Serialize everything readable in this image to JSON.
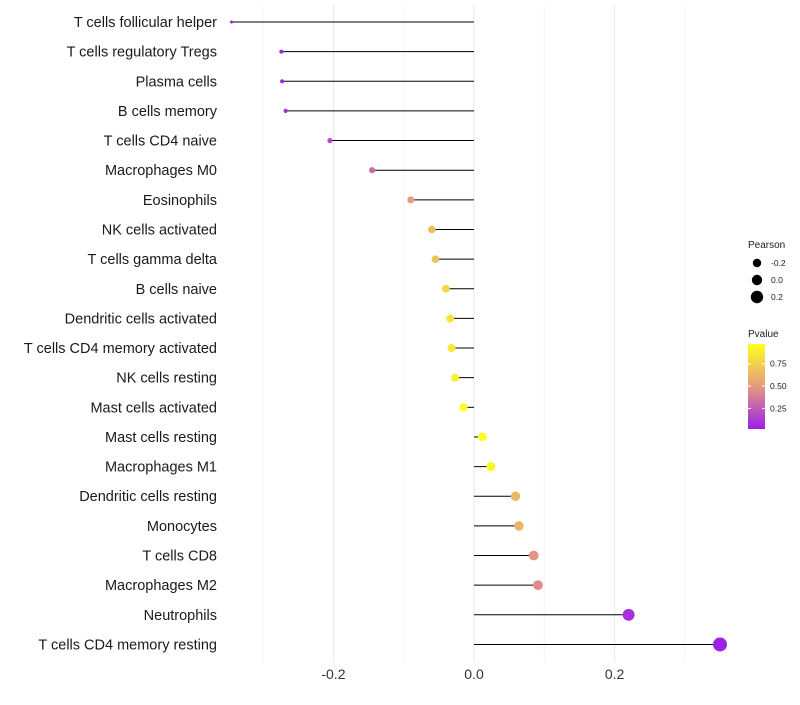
{
  "chart_data": {
    "type": "lollipop",
    "title": "",
    "xlabel": "",
    "ylabel": "",
    "xlim": [
      -0.35,
      0.35
    ],
    "x_ticks": [
      -0.2,
      0.0,
      0.2
    ],
    "x_tick_labels": [
      "-0.2",
      "0.0",
      "0.2"
    ],
    "grid": true,
    "categories": [
      "T cells follicular helper",
      "T cells regulatory  Tregs",
      "Plasma cells",
      "B cells memory",
      "T cells CD4 naive",
      "Macrophages M0",
      "Eosinophils",
      "NK cells activated",
      "T cells gamma delta",
      "B cells naive",
      "Dendritic cells activated",
      "T cells CD4 memory activated",
      "NK cells resting",
      "Mast cells activated",
      "Mast cells resting",
      "Macrophages M1",
      "Dendritic cells resting",
      "Monocytes",
      "T cells CD8",
      "Macrophages M2",
      "Neutrophils",
      "T cells CD4 memory resting"
    ],
    "pearson": [
      -0.345,
      -0.274,
      -0.273,
      -0.268,
      -0.205,
      -0.145,
      -0.09,
      -0.06,
      -0.055,
      -0.04,
      -0.034,
      -0.032,
      -0.027,
      -0.015,
      0.012,
      0.024,
      0.059,
      0.064,
      0.085,
      0.091,
      0.22,
      0.35
    ],
    "pvalue": [
      0.02,
      0.05,
      0.06,
      0.07,
      0.18,
      0.32,
      0.5,
      0.66,
      0.68,
      0.78,
      0.84,
      0.86,
      0.9,
      0.95,
      0.97,
      0.93,
      0.63,
      0.62,
      0.48,
      0.45,
      0.08,
      0.03
    ],
    "legend": {
      "position": "right",
      "size_title": "Pearson",
      "size_entries": [
        {
          "label": "-0.2",
          "value": -0.2
        },
        {
          "label": "0.0",
          "value": 0.0
        },
        {
          "label": "0.2",
          "value": 0.2
        }
      ],
      "color_title": "Pvalue",
      "color_ticks": [
        {
          "label": "0.75",
          "value": 0.75
        },
        {
          "label": "0.50",
          "value": 0.5
        },
        {
          "label": "0.25",
          "value": 0.25
        }
      ],
      "color_range": [
        0.02,
        0.97
      ],
      "color_low": "#9b1fe8",
      "color_mid": "#e59a80",
      "color_high": "#ffff1e"
    }
  }
}
